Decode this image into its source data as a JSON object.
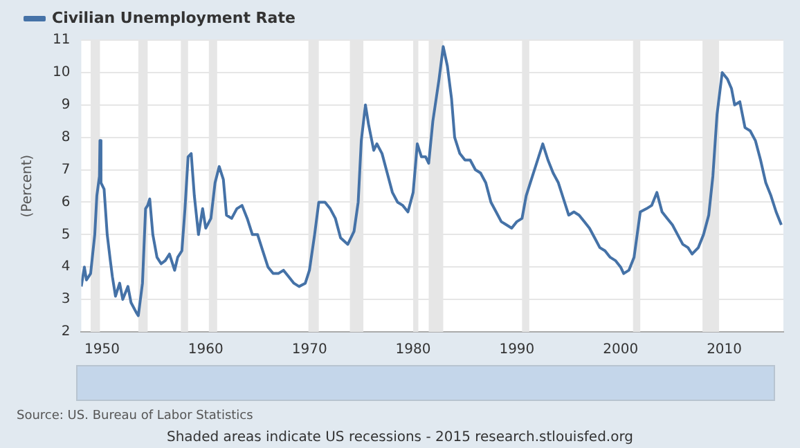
{
  "chart_data": {
    "type": "line",
    "ylabel": "(Percent)",
    "legend": "top left",
    "grid": "y",
    "xlim": [
      1948,
      2015.7
    ],
    "xticks": [
      1950,
      1960,
      1970,
      1980,
      1990,
      2000,
      2010
    ],
    "ylim": [
      2,
      11
    ],
    "yticks": [
      2,
      3,
      4,
      5,
      6,
      7,
      8,
      9,
      10,
      11
    ],
    "annotations": [
      "Source: US. Bureau of Labor Statistics",
      "Shaded areas indicate US recessions - 2015 research.stlouisfed.org"
    ],
    "bands": [
      {
        "axis": "x",
        "from": 1948.9,
        "to": 1949.8,
        "color": "#e6e6e6"
      },
      {
        "axis": "x",
        "from": 1953.5,
        "to": 1954.4,
        "color": "#e6e6e6"
      },
      {
        "axis": "x",
        "from": 1957.6,
        "to": 1958.3,
        "color": "#e6e6e6"
      },
      {
        "axis": "x",
        "from": 1960.3,
        "to": 1961.1,
        "color": "#e6e6e6"
      },
      {
        "axis": "x",
        "from": 1969.9,
        "to": 1970.9,
        "color": "#e6e6e6"
      },
      {
        "axis": "x",
        "from": 1973.9,
        "to": 1975.2,
        "color": "#e6e6e6"
      },
      {
        "axis": "x",
        "from": 1980.0,
        "to": 1980.5,
        "color": "#e6e6e6"
      },
      {
        "axis": "x",
        "from": 1981.5,
        "to": 1982.9,
        "color": "#e6e6e6"
      },
      {
        "axis": "x",
        "from": 1990.5,
        "to": 1991.2,
        "color": "#e6e6e6"
      },
      {
        "axis": "x",
        "from": 2001.2,
        "to": 2001.9,
        "color": "#e6e6e6"
      },
      {
        "axis": "x",
        "from": 2007.9,
        "to": 2009.5,
        "color": "#e6e6e6"
      }
    ],
    "series": [
      {
        "name": "Civilian Unemployment Rate",
        "color": "#4572a7",
        "x": [
          1948.0,
          1948.3,
          1948.5,
          1948.9,
          1949.3,
          1949.5,
          1949.75,
          1949.8,
          1949.9,
          1950.2,
          1950.5,
          1950.8,
          1951.0,
          1951.3,
          1951.7,
          1952.0,
          1952.5,
          1952.8,
          1953.3,
          1953.5,
          1953.9,
          1954.2,
          1954.4,
          1954.6,
          1954.9,
          1955.3,
          1955.7,
          1956.1,
          1956.5,
          1957.0,
          1957.3,
          1957.7,
          1958.0,
          1958.3,
          1958.6,
          1958.9,
          1959.3,
          1959.7,
          1960.0,
          1960.5,
          1960.9,
          1961.3,
          1961.7,
          1962.0,
          1962.5,
          1963.0,
          1963.5,
          1964.0,
          1964.5,
          1965.0,
          1965.5,
          1966.0,
          1966.5,
          1967.0,
          1967.5,
          1968.0,
          1968.5,
          1969.0,
          1969.6,
          1970.0,
          1970.5,
          1970.9,
          1971.5,
          1972.0,
          1972.5,
          1973.0,
          1973.7,
          1974.3,
          1974.7,
          1975.0,
          1975.4,
          1975.7,
          1976.2,
          1976.5,
          1977.0,
          1977.5,
          1978.0,
          1978.5,
          1979.0,
          1979.5,
          1980.0,
          1980.4,
          1980.8,
          1981.2,
          1981.5,
          1981.9,
          1982.5,
          1982.9,
          1983.3,
          1983.7,
          1984.0,
          1984.5,
          1985.0,
          1985.5,
          1986.0,
          1986.5,
          1987.0,
          1987.5,
          1988.0,
          1988.5,
          1989.0,
          1989.5,
          1990.0,
          1990.5,
          1990.9,
          1991.5,
          1992.0,
          1992.5,
          1993.0,
          1993.5,
          1994.0,
          1994.5,
          1995.0,
          1995.5,
          1996.0,
          1996.5,
          1997.0,
          1997.5,
          1998.0,
          1998.5,
          1999.0,
          1999.5,
          2000.0,
          2000.3,
          2000.8,
          2001.3,
          2001.9,
          2002.5,
          2003.0,
          2003.5,
          2004.0,
          2004.5,
          2005.0,
          2005.5,
          2006.0,
          2006.5,
          2006.9,
          2007.5,
          2008.0,
          2008.5,
          2008.9,
          2009.3,
          2009.8,
          2010.3,
          2010.7,
          2011.0,
          2011.5,
          2012.0,
          2012.5,
          2013.0,
          2013.5,
          2014.0,
          2014.5,
          2015.0,
          2015.5
        ],
        "values": [
          3.4,
          4.0,
          3.6,
          3.8,
          5.0,
          6.2,
          6.8,
          7.9,
          6.6,
          6.4,
          5.0,
          4.2,
          3.7,
          3.1,
          3.5,
          3.0,
          3.4,
          2.9,
          2.6,
          2.5,
          3.5,
          5.8,
          5.9,
          6.1,
          5.0,
          4.3,
          4.1,
          4.2,
          4.4,
          3.9,
          4.3,
          4.5,
          5.8,
          7.4,
          7.5,
          6.2,
          5.0,
          5.8,
          5.2,
          5.5,
          6.6,
          7.1,
          6.7,
          5.6,
          5.5,
          5.8,
          5.9,
          5.5,
          5.0,
          5.0,
          4.5,
          4.0,
          3.8,
          3.8,
          3.9,
          3.7,
          3.5,
          3.4,
          3.5,
          3.9,
          5.0,
          6.0,
          6.0,
          5.8,
          5.5,
          4.9,
          4.7,
          5.1,
          6.0,
          7.9,
          9.0,
          8.4,
          7.6,
          7.8,
          7.5,
          6.9,
          6.3,
          6.0,
          5.9,
          5.7,
          6.3,
          7.8,
          7.4,
          7.4,
          7.2,
          8.5,
          9.8,
          10.8,
          10.2,
          9.2,
          8.0,
          7.5,
          7.3,
          7.3,
          7.0,
          6.9,
          6.6,
          6.0,
          5.7,
          5.4,
          5.3,
          5.2,
          5.4,
          5.5,
          6.2,
          6.8,
          7.3,
          7.8,
          7.3,
          6.9,
          6.6,
          6.1,
          5.6,
          5.7,
          5.6,
          5.4,
          5.2,
          4.9,
          4.6,
          4.5,
          4.3,
          4.2,
          4.0,
          3.8,
          3.9,
          4.3,
          5.7,
          5.8,
          5.9,
          6.3,
          5.7,
          5.5,
          5.3,
          5.0,
          4.7,
          4.6,
          4.4,
          4.6,
          5.0,
          5.6,
          6.8,
          8.7,
          10.0,
          9.8,
          9.5,
          9.0,
          9.1,
          8.3,
          8.2,
          7.9,
          7.3,
          6.6,
          6.2,
          5.7,
          5.3
        ]
      }
    ]
  }
}
